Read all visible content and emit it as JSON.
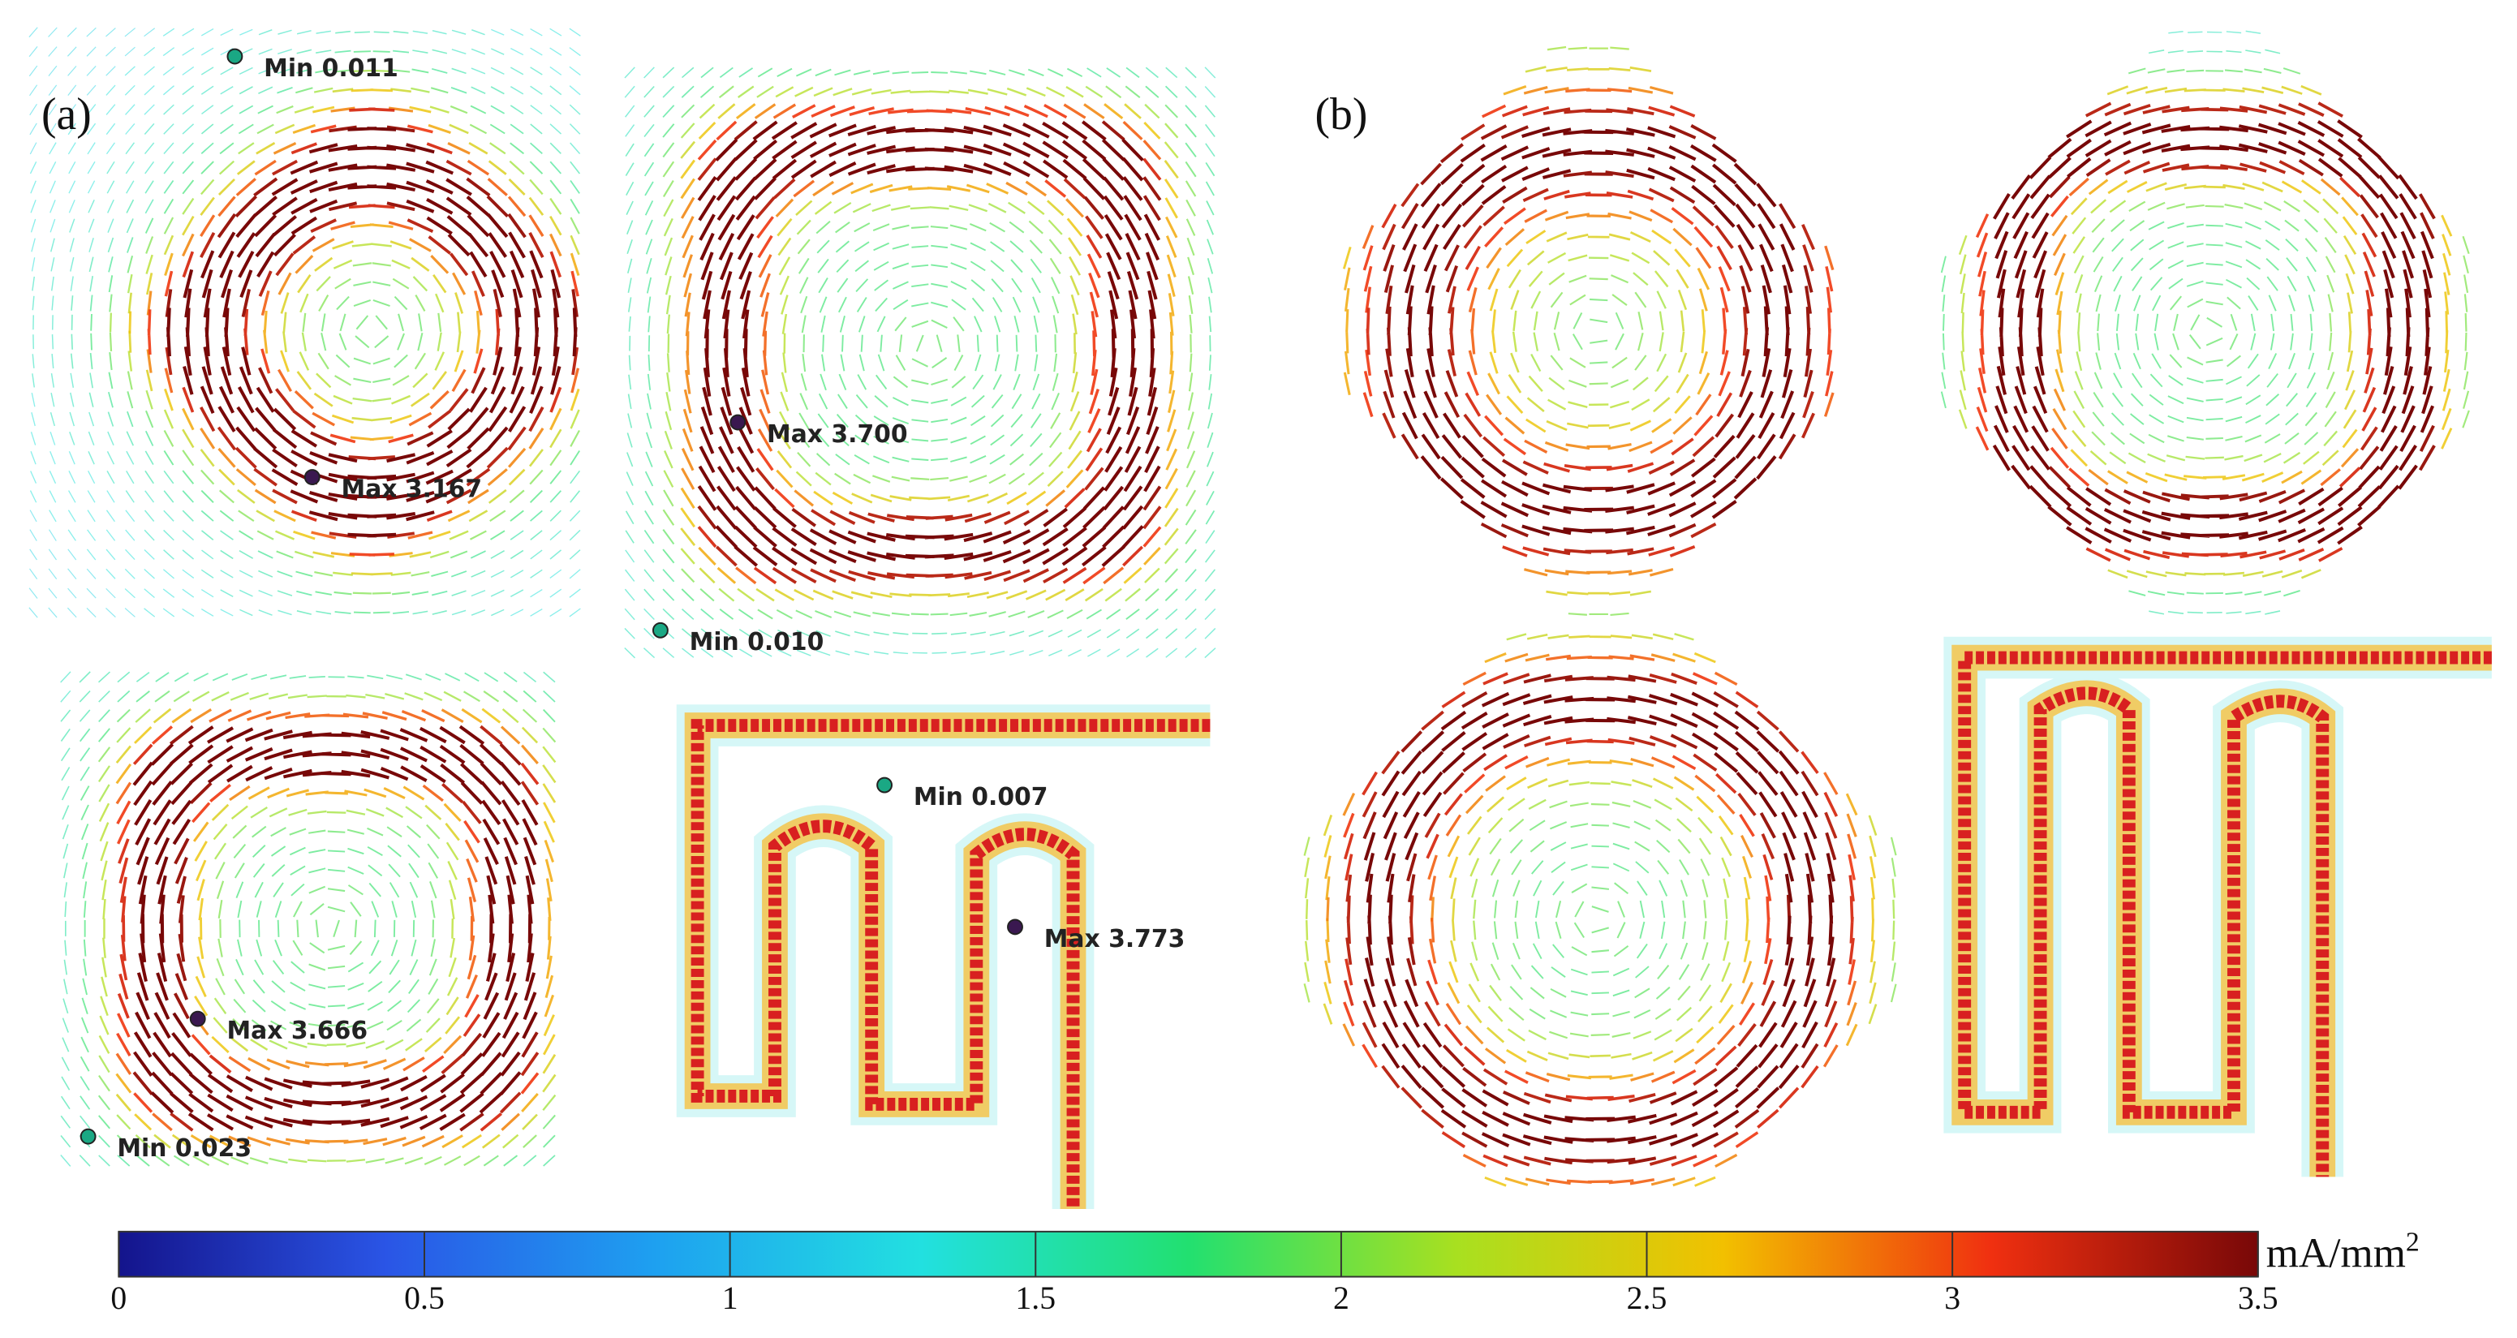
{
  "panels": [
    {
      "label": "(a)",
      "annotations": [
        "Min 0.011",
        "Max 3.167",
        "Max 3.700",
        "Min 0.010",
        "Min 0.007",
        "Max 3.773",
        "Max 3.666",
        "Min 0.023"
      ]
    },
    {
      "label": "(b)"
    }
  ],
  "colorbar": {
    "lim": [
      0,
      3.5
    ],
    "ticks": [
      0,
      0.5,
      1,
      1.5,
      2,
      2.5,
      3,
      3.5
    ],
    "unit": "mA/mm",
    "unit_power": "2",
    "colors": [
      "#14148c",
      "#2a55e6",
      "#1ea0f0",
      "#22e0e0",
      "#22e070",
      "#a8e020",
      "#f2c000",
      "#f03010",
      "#780808"
    ]
  }
}
